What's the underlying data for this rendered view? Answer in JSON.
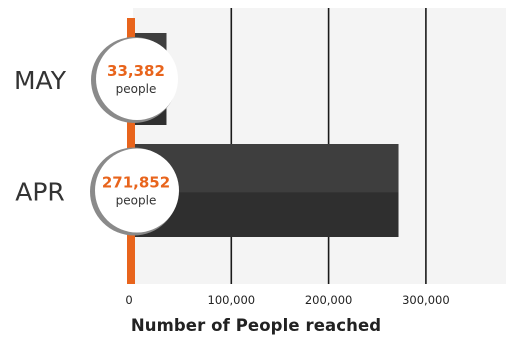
{
  "chart_data": {
    "type": "bar",
    "orientation": "horizontal",
    "categories": [
      "MAY",
      "APR"
    ],
    "values": [
      33382,
      271852
    ],
    "value_labels": [
      "33,382",
      "271,852"
    ],
    "unit_label": "people",
    "xlabel": "Number of  People reached",
    "xlim": [
      0,
      380000
    ],
    "xticks": [
      0,
      100000,
      200000,
      300000
    ],
    "xtick_labels": [
      "0",
      "100,000",
      "200,000",
      "300,000"
    ],
    "grid": true
  },
  "colors": {
    "accent": "#e8641c",
    "bar_top": "#3e3e3e",
    "bar_bottom": "#2f2f2f",
    "plot_bg": "#f4f4f4",
    "grid": "#1a1a1a",
    "text": "#333333"
  }
}
